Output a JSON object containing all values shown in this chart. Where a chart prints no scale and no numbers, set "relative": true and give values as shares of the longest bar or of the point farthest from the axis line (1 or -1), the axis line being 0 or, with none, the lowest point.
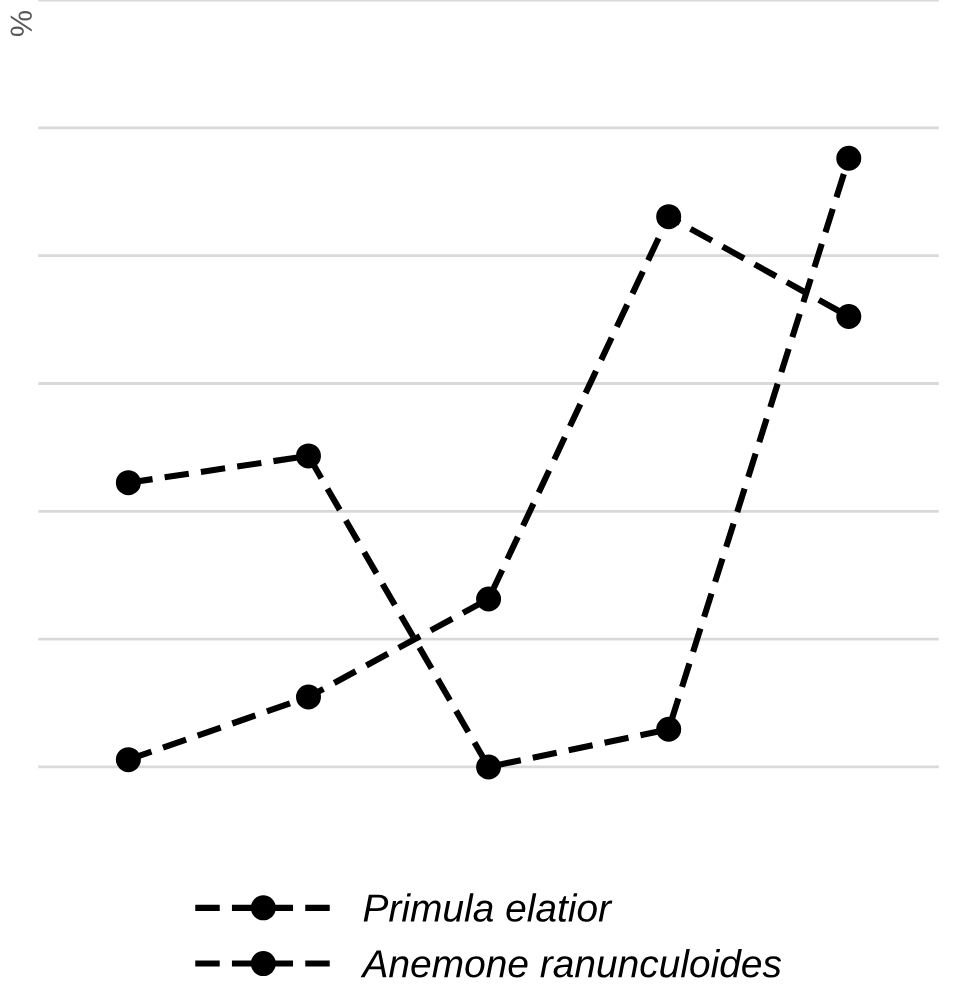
{
  "chart_data": {
    "type": "line",
    "relative": true,
    "ylabel": "%",
    "categories": [
      null,
      null,
      null,
      null,
      null
    ],
    "grid": "y",
    "legend": "bottom",
    "marker": "circle",
    "line_style": "dashed",
    "series": [
      {
        "name": "Primula elatior",
        "color": "#000000",
        "values": [
          0.467,
          0.511,
          0,
          0.062,
          1.0
        ]
      },
      {
        "name": "Anemone ranunculoides",
        "color": "#000000",
        "values": [
          0.012,
          0.115,
          0.276,
          0.904,
          0.74
        ]
      }
    ]
  }
}
